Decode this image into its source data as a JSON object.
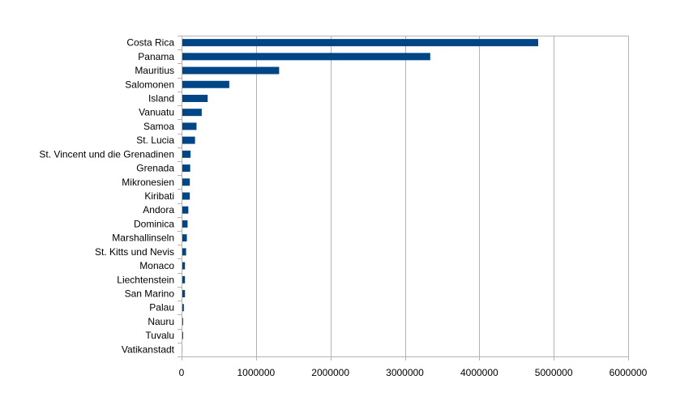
{
  "chart_data": {
    "type": "bar",
    "orientation": "horizontal",
    "categories": [
      "Costa Rica",
      "Panama",
      "Mauritius",
      "Salomonen",
      "Island",
      "Vanuatu",
      "Samoa",
      "St. Lucia",
      "St. Vincent und die Grenadinen",
      "Grenada",
      "Mikronesien",
      "Kiribati",
      "Andora",
      "Dominica",
      "Marshallinseln",
      "St. Kitts und Nevis",
      "Monaco",
      "Liechtenstein",
      "San Marino",
      "Palau",
      "Nauru",
      "Tuvalu",
      "Vatikanstadt"
    ],
    "values": [
      4780000,
      3330000,
      1300000,
      630000,
      340000,
      260000,
      190000,
      170000,
      110000,
      105000,
      100000,
      100000,
      80000,
      70000,
      60000,
      50000,
      35000,
      35000,
      35000,
      20000,
      10000,
      10000,
      1000
    ],
    "xlim": [
      0,
      6000000
    ],
    "xticks": [
      0,
      1000000,
      2000000,
      3000000,
      4000000,
      5000000,
      6000000
    ],
    "grid": true,
    "colors": {
      "bar": "#004586",
      "grid": "#b3b3b3",
      "axis": "#b3b3b3"
    }
  }
}
